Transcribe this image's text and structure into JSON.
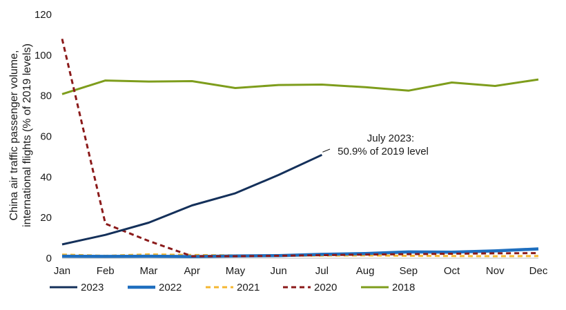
{
  "chart_data": {
    "type": "line",
    "categories": [
      "Jan",
      "Feb",
      "Mar",
      "Apr",
      "May",
      "Jun",
      "Jul",
      "Aug",
      "Sep",
      "Oct",
      "Nov",
      "Dec"
    ],
    "ylabel_line1": "China air traffic passenger volume,",
    "ylabel_line2": "international flights (% of 2019 levels)",
    "ylim": [
      0,
      120
    ],
    "yticks": [
      0,
      20,
      40,
      60,
      80,
      100,
      120
    ],
    "grid": false,
    "legend_position": "bottom",
    "annotation": {
      "line1": "July 2023:",
      "line2": "50.9% of 2019 level",
      "month": "Jul",
      "value": 50.9
    },
    "series": [
      {
        "name": "2023",
        "color": "#14305a",
        "dash": "solid",
        "width": 3,
        "values": [
          6.8,
          11.5,
          17.5,
          26.0,
          32.0,
          41.0,
          50.9,
          null,
          null,
          null,
          null,
          null
        ]
      },
      {
        "name": "2022",
        "color": "#1f6fbf",
        "dash": "solid",
        "width": 4.5,
        "values": [
          1.0,
          0.9,
          1.0,
          0.8,
          1.1,
          1.3,
          1.9,
          2.3,
          3.1,
          3.0,
          3.6,
          4.6
        ]
      },
      {
        "name": "2021",
        "color": "#f5b731",
        "dash": "dashed",
        "width": 3,
        "values": [
          1.8,
          1.2,
          1.9,
          1.6,
          1.4,
          1.3,
          1.3,
          1.4,
          1.2,
          1.1,
          1.0,
          1.1
        ]
      },
      {
        "name": "2020",
        "color": "#8b1a1a",
        "dash": "dashed",
        "width": 3,
        "values": [
          108.0,
          17.0,
          8.5,
          1.0,
          1.0,
          1.2,
          1.5,
          1.8,
          2.0,
          2.2,
          2.4,
          2.5
        ]
      },
      {
        "name": "2018",
        "color": "#7e9d1c",
        "dash": "solid",
        "width": 3,
        "values": [
          80.8,
          87.5,
          87.0,
          87.2,
          83.8,
          85.3,
          85.5,
          84.2,
          82.5,
          86.5,
          84.8,
          88.0
        ]
      }
    ]
  }
}
